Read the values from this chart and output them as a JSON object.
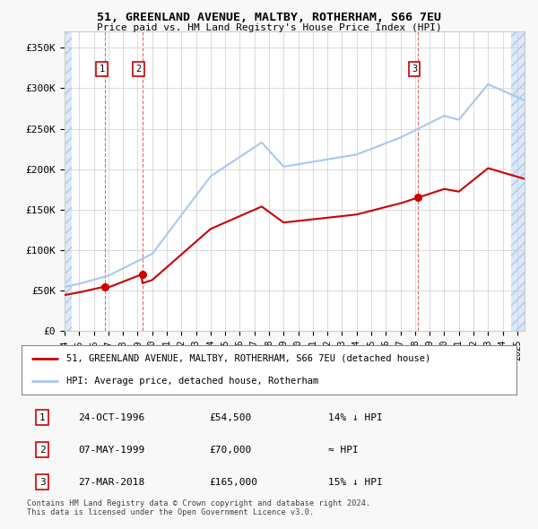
{
  "title": "51, GREENLAND AVENUE, MALTBY, ROTHERHAM, S66 7EU",
  "subtitle": "Price paid vs. HM Land Registry's House Price Index (HPI)",
  "ylabel_ticks": [
    "£0",
    "£50K",
    "£100K",
    "£150K",
    "£200K",
    "£250K",
    "£300K",
    "£350K"
  ],
  "ytick_vals": [
    0,
    50000,
    100000,
    150000,
    200000,
    250000,
    300000,
    350000
  ],
  "ylim": [
    0,
    370000
  ],
  "sale_prices": [
    54500,
    70000,
    165000
  ],
  "sale_labels": [
    "1",
    "2",
    "3"
  ],
  "sale_year_floats": [
    1996.79,
    1999.33,
    2018.21
  ],
  "hpi_color": "#a8c8f0",
  "price_color": "#cc0000",
  "legend_label_price": "51, GREENLAND AVENUE, MALTBY, ROTHERHAM, S66 7EU (detached house)",
  "legend_label_hpi": "HPI: Average price, detached house, Rotherham",
  "table_data": [
    [
      "1",
      "24-OCT-1996",
      "£54,500",
      "14% ↓ HPI"
    ],
    [
      "2",
      "07-MAY-1999",
      "£70,000",
      "≈ HPI"
    ],
    [
      "3",
      "27-MAR-2018",
      "£165,000",
      "15% ↓ HPI"
    ]
  ],
  "footnote": "Contains HM Land Registry data © Crown copyright and database right 2024.\nThis data is licensed under the Open Government Licence v3.0.",
  "plot_bg_color": "#ffffff",
  "fig_bg_color": "#f8f8f8",
  "hatch_bg_color": "#dde8f8",
  "hatch_edge_color": "#b0c8e8",
  "xlim": [
    1994,
    2025.5
  ],
  "hatch_left_end": 1994.5,
  "hatch_right_start": 2024.6
}
